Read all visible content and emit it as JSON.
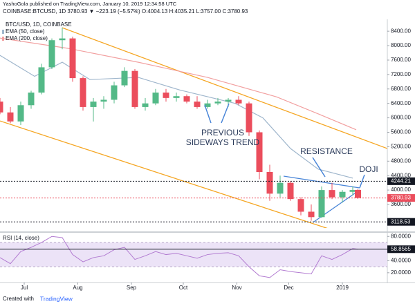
{
  "header": {
    "line1": "YashoGola published on TradingView.com, January 10, 2019 12:34:58 UTC",
    "line2": "COINBASE:BTCUSD, 1D 3780.93 ▼ −223.19 (−5.57%) O:4004.13 H:4035.21 L:3757.00 C:3780.93"
  },
  "footer": {
    "created": "Created with",
    "brand": "TradingView"
  },
  "chart_data": [
    {
      "type": "candlestick",
      "title": "BTC/USD, 1D, COINBASE",
      "up_color": "#53b987",
      "down_color": "#eb4d5c",
      "x": [
        0,
        6,
        12,
        18,
        24,
        30,
        36,
        42,
        48,
        54,
        60,
        66,
        72,
        78,
        84,
        90,
        96,
        102,
        108,
        114,
        120,
        126,
        132,
        138,
        144,
        150,
        156,
        162,
        168,
        174,
        180,
        186,
        192,
        198,
        204,
        207
      ],
      "open": [
        6450,
        6150,
        5900,
        6350,
        6700,
        7400,
        8150,
        8200,
        7100,
        6300,
        6450,
        6500,
        6900,
        7300,
        6300,
        6400,
        6700,
        6550,
        6600,
        6450,
        6300,
        6400,
        6450,
        6500,
        6400,
        5600,
        4500,
        3900,
        4200,
        3750,
        3400,
        3250,
        4000,
        3800,
        3950,
        4004.13
      ],
      "high": [
        6550,
        6300,
        6450,
        6750,
        7500,
        8200,
        8500,
        8250,
        7150,
        6550,
        6600,
        7000,
        7400,
        7350,
        6550,
        6800,
        6800,
        6700,
        6650,
        6600,
        6500,
        6550,
        6550,
        6600,
        6450,
        5650,
        4700,
        4400,
        4250,
        3800,
        3600,
        4100,
        4200,
        4000,
        4100,
        4035.21
      ],
      "low": [
        6100,
        5850,
        5800,
        6250,
        6650,
        7350,
        7900,
        7000,
        6200,
        5900,
        6250,
        6400,
        6850,
        6250,
        6200,
        6350,
        6450,
        6450,
        6400,
        6250,
        6250,
        6350,
        6300,
        6350,
        5500,
        4300,
        3700,
        3800,
        3700,
        3300,
        3150,
        3230,
        3750,
        3650,
        3850,
        3757.0
      ],
      "close": [
        6150,
        5900,
        6350,
        6700,
        7400,
        8150,
        8200,
        7100,
        6300,
        6450,
        6500,
        6900,
        7300,
        6300,
        6400,
        6700,
        6550,
        6600,
        6450,
        6300,
        6400,
        6450,
        6500,
        6400,
        5600,
        4500,
        3900,
        4200,
        3750,
        3400,
        3250,
        4000,
        3800,
        3950,
        4000,
        3780.93
      ],
      "series": [
        {
          "name": "EMA (50, close)",
          "color": "#9fb6cc",
          "x": [
            0,
            20,
            36,
            52,
            80,
            104,
            136,
            152,
            168,
            184,
            204
          ],
          "values": [
            7730,
            7150,
            7540,
            7060,
            7120,
            6770,
            6400,
            6000,
            5150,
            4580,
            4330
          ]
        },
        {
          "name": "EMA (200, close)",
          "color": "#f2a0a0",
          "x": [
            0,
            40,
            80,
            120,
            160,
            184,
            206
          ],
          "values": [
            8210,
            7920,
            7540,
            7120,
            6580,
            6110,
            5670
          ]
        }
      ],
      "drawings": [
        {
          "color": "#f5a623",
          "x": [
            36,
            224
          ],
          "values": [
            8496,
            5150
          ]
        },
        {
          "color": "#f5a623",
          "x": [
            0,
            224
          ],
          "values": [
            5914,
            2394
          ]
        },
        {
          "color": "#4a86d8",
          "x": [
            164,
            208
          ],
          "values": [
            4385,
            4059
          ]
        },
        {
          "color": "#4a86d8",
          "x": [
            181,
            208
          ],
          "values": [
            3103,
            4002
          ]
        }
      ],
      "hlines": [
        {
          "value": 4244.21,
          "color": "#131722"
        },
        {
          "value": 3118.53,
          "color": "#131722"
        },
        {
          "value": 3780.93,
          "color": "#eb4d5c"
        }
      ],
      "annotations": [
        "PREVIOUS",
        "SIDEWAYS TREND",
        "RESISTANCE",
        "DOJI"
      ],
      "xlim": [
        0,
        224
      ],
      "xticks": [
        {
          "value": 14,
          "label": "Jul"
        },
        {
          "value": 45,
          "label": "Aug"
        },
        {
          "value": 76,
          "label": "Sep"
        },
        {
          "value": 106,
          "label": "Oct"
        },
        {
          "value": 137,
          "label": "Nov"
        },
        {
          "value": 167,
          "label": "Dec"
        },
        {
          "value": 198,
          "label": "2019"
        }
      ],
      "ylim": [
        2950,
        8690
      ],
      "yticks": [
        {
          "value": 3600,
          "label": "3600.00"
        },
        {
          "value": 4000,
          "label": "4000.00"
        },
        {
          "value": 4400,
          "label": "4400.00"
        },
        {
          "value": 4800,
          "label": "4800.00"
        },
        {
          "value": 5200,
          "label": "5200.00"
        },
        {
          "value": 5600,
          "label": "5600.00"
        },
        {
          "value": 6000,
          "label": "6000.00"
        },
        {
          "value": 6400,
          "label": "6400.00"
        },
        {
          "value": 6800,
          "label": "6800.00"
        },
        {
          "value": 7200,
          "label": "7200.00"
        },
        {
          "value": 7600,
          "label": "7600.00"
        },
        {
          "value": 8000,
          "label": "8000.00"
        },
        {
          "value": 8400,
          "label": "8400.00"
        }
      ]
    },
    {
      "type": "line",
      "title": "RSI (14, close)",
      "color": "#b27bd1",
      "band": [
        30,
        70
      ],
      "x": [
        0,
        6,
        12,
        18,
        24,
        30,
        36,
        42,
        48,
        54,
        60,
        66,
        72,
        78,
        84,
        90,
        96,
        102,
        108,
        114,
        120,
        126,
        132,
        138,
        144,
        150,
        156,
        162,
        168,
        174,
        180,
        186,
        192,
        198,
        204,
        207
      ],
      "values": [
        45,
        35,
        55,
        62,
        70,
        80,
        78,
        50,
        38,
        45,
        48,
        58,
        62,
        42,
        48,
        55,
        50,
        52,
        48,
        44,
        50,
        52,
        53,
        48,
        30,
        15,
        12,
        25,
        22,
        20,
        18,
        48,
        42,
        50,
        60,
        58.8565
      ],
      "xlim": [
        0,
        224
      ],
      "ylim": [
        5,
        86
      ],
      "yticks": [
        {
          "value": 20,
          "label": "20.0000"
        },
        {
          "value": 40,
          "label": "40.0000"
        },
        {
          "value": 80,
          "label": "80.0000"
        }
      ]
    }
  ]
}
